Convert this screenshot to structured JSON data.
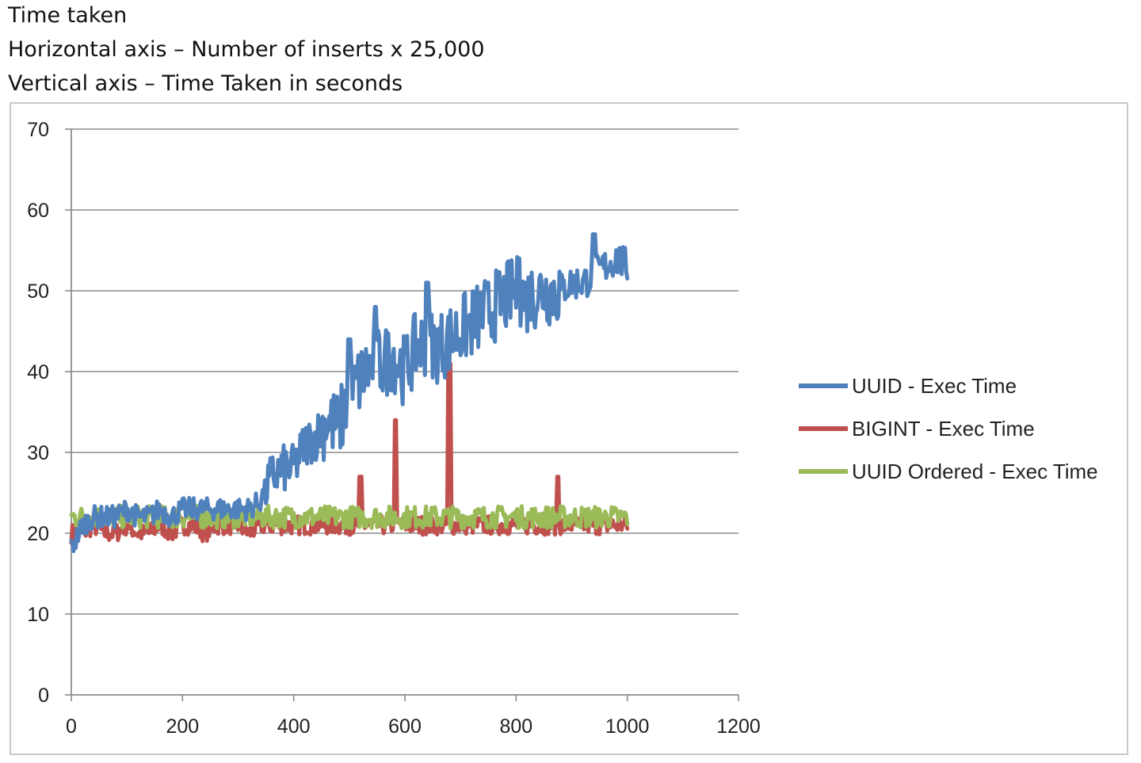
{
  "captions": {
    "title": "Time taken",
    "horizontal": "Horizontal axis – Number of inserts x 25,000",
    "vertical": "Vertical axis – Time Taken in seconds"
  },
  "chart_data": {
    "type": "line",
    "title": "",
    "xlabel": "",
    "ylabel": "",
    "xlim": [
      0,
      1200
    ],
    "ylim": [
      0,
      70
    ],
    "x_ticks": [
      0,
      200,
      400,
      600,
      800,
      1000,
      1200
    ],
    "y_ticks": [
      0,
      10,
      20,
      30,
      40,
      50,
      60,
      70
    ],
    "grid": "horizontal",
    "legend_position": "right",
    "series": [
      {
        "name": "UUID - Exec Time",
        "color": "#4f81bd",
        "x": [
          0,
          20,
          40,
          60,
          80,
          100,
          120,
          140,
          160,
          180,
          200,
          220,
          240,
          260,
          280,
          300,
          320,
          340,
          360,
          380,
          400,
          420,
          440,
          460,
          480,
          500,
          520,
          540,
          560,
          580,
          600,
          620,
          640,
          660,
          680,
          700,
          720,
          740,
          760,
          780,
          800,
          820,
          840,
          860,
          880,
          900,
          920,
          940,
          960,
          980,
          1000
        ],
        "y": [
          18,
          21,
          22,
          22,
          22,
          23,
          22,
          22,
          23,
          22,
          23,
          23,
          23,
          23,
          23,
          23,
          23,
          24,
          27,
          28,
          28,
          31,
          32,
          34,
          33,
          37,
          39,
          41,
          41,
          42,
          40,
          43,
          44,
          43,
          44,
          45,
          46,
          47,
          48,
          49,
          50,
          49,
          50,
          50,
          50,
          51,
          51,
          52,
          53,
          54,
          53
        ]
      },
      {
        "name": "BIGINT - Exec Time",
        "color": "#c0504d",
        "x": [
          0,
          20,
          40,
          60,
          80,
          100,
          120,
          140,
          160,
          180,
          200,
          220,
          240,
          260,
          280,
          300,
          320,
          340,
          360,
          380,
          400,
          420,
          440,
          460,
          480,
          500,
          520,
          540,
          560,
          580,
          600,
          620,
          640,
          660,
          680,
          700,
          720,
          740,
          760,
          780,
          800,
          820,
          840,
          860,
          880,
          900,
          920,
          940,
          960,
          980,
          1000
        ],
        "y": [
          20,
          20,
          21,
          20,
          20,
          21,
          20,
          20,
          21,
          20,
          21,
          21,
          20,
          21,
          21,
          21,
          20,
          21,
          21,
          21,
          21,
          21,
          21,
          21,
          21,
          21,
          21,
          21,
          21,
          21,
          21,
          21,
          21,
          21,
          21,
          21,
          21,
          21,
          21,
          21,
          21,
          21,
          21,
          21,
          21,
          21,
          21,
          21,
          21,
          21,
          21
        ]
      },
      {
        "name": "UUID Ordered - Exec Time",
        "color": "#9bbb59",
        "x": [
          0,
          20,
          40,
          60,
          80,
          100,
          120,
          140,
          160,
          180,
          200,
          220,
          240,
          260,
          280,
          300,
          320,
          340,
          360,
          380,
          400,
          420,
          440,
          460,
          480,
          500,
          520,
          540,
          560,
          580,
          600,
          620,
          640,
          660,
          680,
          700,
          720,
          740,
          760,
          780,
          800,
          820,
          840,
          860,
          880,
          900,
          920,
          940,
          960,
          980,
          1000
        ],
        "y": [
          22,
          22,
          22,
          22,
          22,
          22,
          22,
          22,
          22,
          22,
          22,
          22,
          22,
          22,
          22,
          22,
          22,
          22,
          22,
          22,
          22,
          22,
          22,
          22,
          22,
          22,
          22,
          22,
          22,
          22,
          22,
          22,
          22,
          22,
          22,
          22,
          22,
          22,
          22,
          22,
          22,
          22,
          22,
          22,
          22,
          22,
          22,
          22,
          22,
          22,
          22
        ]
      }
    ],
    "spikes": [
      {
        "series": "BIGINT - Exec Time",
        "x": 520,
        "y": 27
      },
      {
        "series": "BIGINT - Exec Time",
        "x": 583,
        "y": 34
      },
      {
        "series": "BIGINT - Exec Time",
        "x": 680,
        "y": 41
      },
      {
        "series": "BIGINT - Exec Time",
        "x": 875,
        "y": 27
      },
      {
        "series": "UUID - Exec Time",
        "x": 500,
        "y": 44
      },
      {
        "series": "UUID - Exec Time",
        "x": 547,
        "y": 48
      },
      {
        "series": "UUID - Exec Time",
        "x": 640,
        "y": 51
      },
      {
        "series": "UUID - Exec Time",
        "x": 805,
        "y": 54
      },
      {
        "series": "UUID - Exec Time",
        "x": 940,
        "y": 57
      }
    ]
  }
}
